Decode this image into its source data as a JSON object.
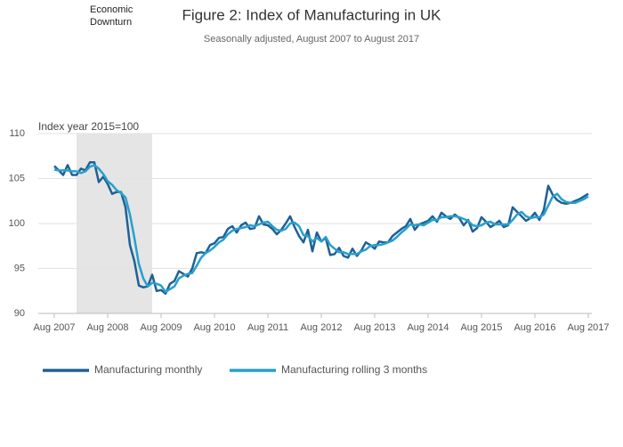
{
  "chart_data": {
    "type": "line",
    "title": "Figure 2: Index of Manufacturing in UK",
    "subtitle": "Seasonally adjusted, August 2007 to August 2017",
    "y_label": "Index year 2015=100",
    "downturn": {
      "label": "Economic Downturn",
      "x": [
        5,
        22
      ],
      "color": "#e5e5e5"
    },
    "categories": [
      "Aug 2007",
      null,
      null,
      null,
      null,
      null,
      null,
      null,
      null,
      null,
      null,
      null,
      "Aug 2008",
      null,
      null,
      null,
      null,
      null,
      null,
      null,
      null,
      null,
      null,
      null,
      "Aug 2009",
      null,
      null,
      null,
      null,
      null,
      null,
      null,
      null,
      null,
      null,
      null,
      "Aug 2010",
      null,
      null,
      null,
      null,
      null,
      null,
      null,
      null,
      null,
      null,
      null,
      "Aug 2011",
      null,
      null,
      null,
      null,
      null,
      null,
      null,
      null,
      null,
      null,
      null,
      "Aug 2012",
      null,
      null,
      null,
      null,
      null,
      null,
      null,
      null,
      null,
      null,
      null,
      "Aug 2013",
      null,
      null,
      null,
      null,
      null,
      null,
      null,
      null,
      null,
      null,
      null,
      "Aug 2014",
      null,
      null,
      null,
      null,
      null,
      null,
      null,
      null,
      null,
      null,
      null,
      "Aug 2015",
      null,
      null,
      null,
      null,
      null,
      null,
      null,
      null,
      null,
      null,
      null,
      "Aug 2016",
      null,
      null,
      null,
      null,
      null,
      null,
      null,
      null,
      null,
      null,
      null,
      "Aug 2017"
    ],
    "series": [
      {
        "name": "Manufacturing monthly",
        "color": "#206095",
        "values": [
          106.4,
          105.9,
          105.4,
          106.5,
          105.4,
          105.4,
          106.1,
          105.9,
          106.8,
          106.8,
          104.6,
          105.2,
          104.4,
          103.3,
          103.5,
          103.5,
          101.8,
          97.6,
          95.8,
          93.1,
          92.9,
          93.0,
          94.3,
          92.5,
          92.6,
          92.2,
          93.3,
          93.6,
          94.7,
          94.4,
          94.1,
          95.0,
          96.7,
          96.8,
          96.7,
          97.6,
          97.8,
          98.4,
          98.5,
          99.4,
          99.7,
          99.0,
          99.8,
          100.1,
          99.4,
          99.5,
          100.8,
          99.9,
          99.8,
          99.4,
          98.8,
          99.3,
          100.0,
          100.8,
          99.6,
          98.6,
          97.9,
          99.3,
          96.9,
          99.0,
          98.0,
          98.4,
          96.5,
          96.6,
          97.3,
          96.4,
          96.2,
          97.2,
          96.4,
          97.0,
          97.9,
          97.6,
          97.2,
          98.0,
          97.9,
          97.9,
          98.6,
          99.0,
          99.4,
          99.7,
          100.5,
          99.3,
          99.9,
          100.1,
          100.3,
          100.8,
          100.2,
          101.2,
          100.8,
          100.5,
          101.0,
          100.6,
          99.8,
          100.4,
          99.1,
          99.5,
          100.7,
          100.2,
          99.6,
          99.9,
          100.3,
          99.6,
          99.8,
          101.8,
          101.3,
          100.8,
          100.3,
          100.6,
          101.2,
          100.4,
          101.5,
          104.2,
          103.2,
          102.6,
          102.3,
          102.2,
          102.3,
          102.5,
          102.7,
          103.0,
          103.3
        ]
      },
      {
        "name": "Manufacturing rolling 3 months",
        "color": "#27a0cc",
        "values": [
          106.0,
          105.9,
          105.9,
          105.9,
          105.8,
          105.8,
          105.6,
          105.8,
          106.3,
          106.5,
          106.1,
          105.5,
          104.7,
          104.3,
          103.7,
          103.4,
          102.9,
          101.0,
          98.4,
          95.5,
          93.9,
          93.0,
          93.4,
          93.3,
          93.1,
          92.4,
          92.7,
          93.0,
          93.9,
          94.2,
          94.4,
          94.5,
          95.3,
          96.2,
          96.7,
          97.0,
          97.4,
          97.9,
          98.2,
          98.8,
          99.2,
          99.4,
          99.5,
          99.6,
          99.8,
          99.7,
          99.9,
          100.1,
          100.2,
          99.7,
          99.3,
          99.2,
          99.4,
          100.0,
          100.1,
          99.7,
          98.7,
          98.6,
          98.0,
          98.4,
          98.0,
          98.5,
          97.6,
          97.2,
          96.8,
          96.8,
          96.6,
          96.6,
          96.6,
          96.9,
          97.1,
          97.5,
          97.6,
          97.6,
          97.7,
          97.9,
          98.1,
          98.5,
          99.0,
          99.4,
          99.9,
          99.8,
          99.9,
          99.8,
          100.1,
          100.4,
          100.4,
          100.7,
          100.7,
          100.8,
          100.8,
          100.7,
          100.5,
          100.3,
          99.8,
          99.7,
          99.8,
          100.1,
          100.2,
          99.9,
          99.9,
          99.9,
          99.9,
          100.4,
          101.0,
          101.3,
          100.8,
          100.6,
          100.7,
          100.7,
          101.0,
          102.0,
          103.0,
          103.3,
          102.7,
          102.4,
          102.3,
          102.3,
          102.5,
          102.7,
          103.0
        ]
      }
    ],
    "ylim": [
      90,
      110
    ],
    "yticks": [
      90,
      95,
      100,
      105,
      110
    ],
    "grid": true
  }
}
